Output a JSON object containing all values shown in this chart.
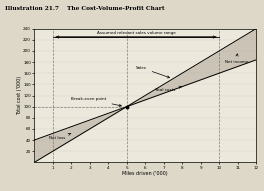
{
  "title": "Illustration 21.7    The Cost-Volume-Profit Chart",
  "xlabel": "Miles driven ('000)",
  "ylabel": "Total cost ('000)",
  "xlim": [
    0,
    12
  ],
  "ylim": [
    0,
    240
  ],
  "xticks": [
    1,
    2,
    3,
    4,
    5,
    6,
    7,
    8,
    9,
    10,
    11,
    12
  ],
  "yticks": [
    20,
    40,
    60,
    80,
    100,
    120,
    140,
    160,
    180,
    200,
    220,
    240
  ],
  "bg_color": "#ddd8c8",
  "plot_bg": "#ece8dc",
  "relevant_range_low": 1,
  "relevant_range_high": 10,
  "breakeven_x": 5,
  "breakeven_y": 100,
  "fixed_cost": 40,
  "total_cost_slope": 12,
  "sales_slope": 20,
  "annotations": {
    "assumed_range": "Assumed relevant sales volume range",
    "breakeven": "Break-even point",
    "sales": "Sales",
    "total_costs": "Total costs",
    "net_income": "Net income",
    "net_loss": "Net loss"
  },
  "rr_bracket_y": 225,
  "arrow_color": "black",
  "line_color": "black",
  "dashed_color": "#666666",
  "shade_color": "#b0a898",
  "shade_alpha": 0.55
}
